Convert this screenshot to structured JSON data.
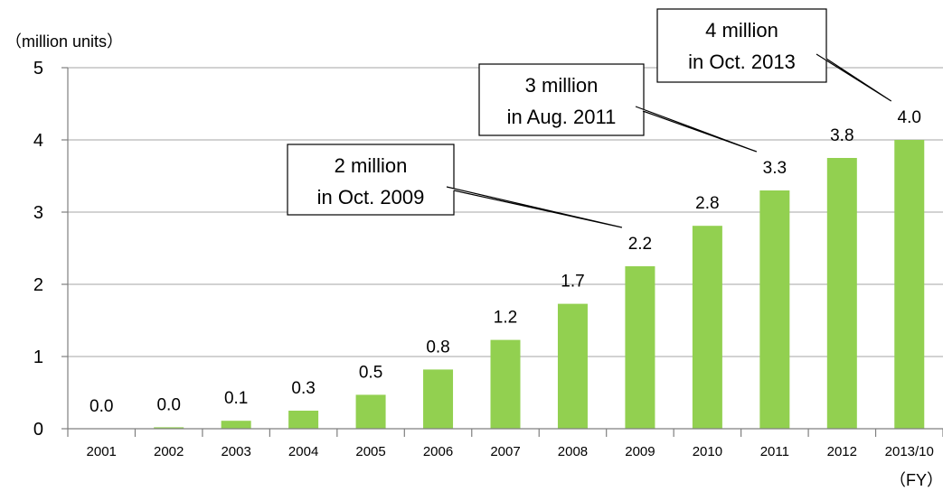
{
  "chart_data": {
    "type": "bar",
    "ylabel": "（million units）",
    "xlabel": "（FY）",
    "ylim": [
      0,
      5
    ],
    "yticks": [
      "0",
      "1",
      "2",
      "3",
      "4",
      "5"
    ],
    "grid": true,
    "bar_color": "#92d050",
    "categories": [
      "2001",
      "2002",
      "2003",
      "2004",
      "2005",
      "2006",
      "2007",
      "2008",
      "2009",
      "2010",
      "2011",
      "2012",
      "2013/10"
    ],
    "values": [
      0.0,
      0.02,
      0.11,
      0.25,
      0.47,
      0.82,
      1.23,
      1.73,
      2.25,
      2.81,
      3.3,
      3.75,
      4.0
    ],
    "data_labels": [
      "0.0",
      "0.0",
      "0.1",
      "0.3",
      "0.5",
      "0.8",
      "1.2",
      "1.7",
      "2.2",
      "2.8",
      "3.3",
      "3.8",
      "4.0"
    ],
    "annotations": [
      {
        "line1": "2 million",
        "line2": "in Oct. 2009",
        "target_category": "2009"
      },
      {
        "line1": "3 million",
        "line2": "in Aug. 2011",
        "target_category": "2011"
      },
      {
        "line1": "4 million",
        "line2": "in Oct. 2013",
        "target_category": "2013/10"
      }
    ]
  }
}
